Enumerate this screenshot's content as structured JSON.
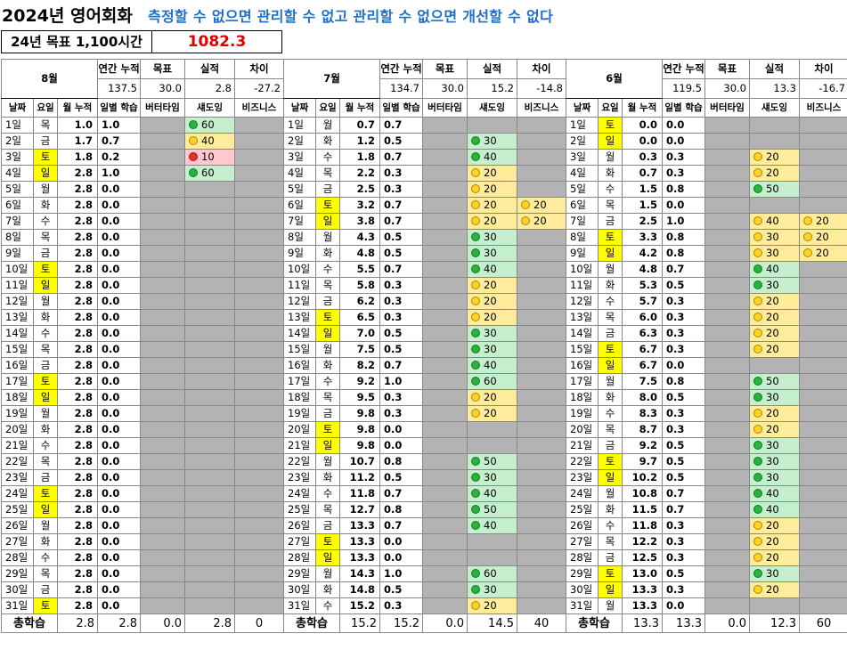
{
  "title": "2024년 영어회화",
  "motto": "측정할 수 없으면  관리할 수 없고 관리할 수 없으면 개선할 수 없다",
  "goal": {
    "label": "24년 목표 1,100시간",
    "value": "1082.3"
  },
  "headers": {
    "annual": "연간 누적",
    "target": "목표",
    "actual": "실적",
    "diff": "차이",
    "date": "날짜",
    "weekday": "요일",
    "monthCum": "월 누적",
    "daily": "일별 학습",
    "butter": "버터타임",
    "shadow": "섀도잉",
    "business": "비즈니스",
    "total": "총학습"
  },
  "months": [
    {
      "name": "8월",
      "summary": {
        "annual": "137.5",
        "target": "30.0",
        "actual": "2.8",
        "diff": "-27.2"
      },
      "rows": [
        [
          "1일",
          "목",
          "1.0",
          "1.0",
          null,
          [
            "60",
            "green"
          ],
          null
        ],
        [
          "2일",
          "금",
          "1.7",
          "0.7",
          null,
          [
            "40",
            "yellow"
          ],
          null
        ],
        [
          "3일",
          "토",
          "1.8",
          "0.2",
          null,
          [
            "10",
            "red"
          ],
          null
        ],
        [
          "4일",
          "일",
          "2.8",
          "1.0",
          null,
          [
            "60",
            "green"
          ],
          null
        ],
        [
          "5일",
          "월",
          "2.8",
          "0.0",
          null,
          null,
          null
        ],
        [
          "6일",
          "화",
          "2.8",
          "0.0",
          null,
          null,
          null
        ],
        [
          "7일",
          "수",
          "2.8",
          "0.0",
          null,
          null,
          null
        ],
        [
          "8일",
          "목",
          "2.8",
          "0.0",
          null,
          null,
          null
        ],
        [
          "9일",
          "금",
          "2.8",
          "0.0",
          null,
          null,
          null
        ],
        [
          "10일",
          "토",
          "2.8",
          "0.0",
          null,
          null,
          null
        ],
        [
          "11일",
          "일",
          "2.8",
          "0.0",
          null,
          null,
          null
        ],
        [
          "12일",
          "월",
          "2.8",
          "0.0",
          null,
          null,
          null
        ],
        [
          "13일",
          "화",
          "2.8",
          "0.0",
          null,
          null,
          null
        ],
        [
          "14일",
          "수",
          "2.8",
          "0.0",
          null,
          null,
          null
        ],
        [
          "15일",
          "목",
          "2.8",
          "0.0",
          null,
          null,
          null
        ],
        [
          "16일",
          "금",
          "2.8",
          "0.0",
          null,
          null,
          null
        ],
        [
          "17일",
          "토",
          "2.8",
          "0.0",
          null,
          null,
          null
        ],
        [
          "18일",
          "일",
          "2.8",
          "0.0",
          null,
          null,
          null
        ],
        [
          "19일",
          "월",
          "2.8",
          "0.0",
          null,
          null,
          null
        ],
        [
          "20일",
          "화",
          "2.8",
          "0.0",
          null,
          null,
          null
        ],
        [
          "21일",
          "수",
          "2.8",
          "0.0",
          null,
          null,
          null
        ],
        [
          "22일",
          "목",
          "2.8",
          "0.0",
          null,
          null,
          null
        ],
        [
          "23일",
          "금",
          "2.8",
          "0.0",
          null,
          null,
          null
        ],
        [
          "24일",
          "토",
          "2.8",
          "0.0",
          null,
          null,
          null
        ],
        [
          "25일",
          "일",
          "2.8",
          "0.0",
          null,
          null,
          null
        ],
        [
          "26일",
          "월",
          "2.8",
          "0.0",
          null,
          null,
          null
        ],
        [
          "27일",
          "화",
          "2.8",
          "0.0",
          null,
          null,
          null
        ],
        [
          "28일",
          "수",
          "2.8",
          "0.0",
          null,
          null,
          null
        ],
        [
          "29일",
          "목",
          "2.8",
          "0.0",
          null,
          null,
          null
        ],
        [
          "30일",
          "금",
          "2.8",
          "0.0",
          null,
          null,
          null
        ],
        [
          "31일",
          "토",
          "2.8",
          "0.0",
          null,
          null,
          null
        ]
      ],
      "total": [
        "2.8",
        "2.8",
        "0.0",
        "2.8",
        "0"
      ]
    },
    {
      "name": "7월",
      "summary": {
        "annual": "134.7",
        "target": "30.0",
        "actual": "15.2",
        "diff": "-14.8"
      },
      "rows": [
        [
          "1일",
          "월",
          "0.7",
          "0.7",
          null,
          null,
          null
        ],
        [
          "2일",
          "화",
          "1.2",
          "0.5",
          null,
          [
            "30",
            "green"
          ],
          null
        ],
        [
          "3일",
          "수",
          "1.8",
          "0.7",
          null,
          [
            "40",
            "green"
          ],
          null
        ],
        [
          "4일",
          "목",
          "2.2",
          "0.3",
          null,
          [
            "20",
            "yellow"
          ],
          null
        ],
        [
          "5일",
          "금",
          "2.5",
          "0.3",
          null,
          [
            "20",
            "yellow"
          ],
          null
        ],
        [
          "6일",
          "토",
          "3.2",
          "0.7",
          null,
          [
            "20",
            "yellow"
          ],
          [
            "20",
            "yellow"
          ]
        ],
        [
          "7일",
          "일",
          "3.8",
          "0.7",
          null,
          [
            "20",
            "yellow"
          ],
          [
            "20",
            "yellow"
          ]
        ],
        [
          "8일",
          "월",
          "4.3",
          "0.5",
          null,
          [
            "30",
            "green"
          ],
          null
        ],
        [
          "9일",
          "화",
          "4.8",
          "0.5",
          null,
          [
            "30",
            "green"
          ],
          null
        ],
        [
          "10일",
          "수",
          "5.5",
          "0.7",
          null,
          [
            "40",
            "green"
          ],
          null
        ],
        [
          "11일",
          "목",
          "5.8",
          "0.3",
          null,
          [
            "20",
            "yellow"
          ],
          null
        ],
        [
          "12일",
          "금",
          "6.2",
          "0.3",
          null,
          [
            "20",
            "yellow"
          ],
          null
        ],
        [
          "13일",
          "토",
          "6.5",
          "0.3",
          null,
          [
            "20",
            "yellow"
          ],
          null
        ],
        [
          "14일",
          "일",
          "7.0",
          "0.5",
          null,
          [
            "30",
            "green"
          ],
          null
        ],
        [
          "15일",
          "월",
          "7.5",
          "0.5",
          null,
          [
            "30",
            "green"
          ],
          null
        ],
        [
          "16일",
          "화",
          "8.2",
          "0.7",
          null,
          [
            "40",
            "green"
          ],
          null
        ],
        [
          "17일",
          "수",
          "9.2",
          "1.0",
          null,
          [
            "60",
            "green"
          ],
          null
        ],
        [
          "18일",
          "목",
          "9.5",
          "0.3",
          null,
          [
            "20",
            "yellow"
          ],
          null
        ],
        [
          "19일",
          "금",
          "9.8",
          "0.3",
          null,
          [
            "20",
            "yellow"
          ],
          null
        ],
        [
          "20일",
          "토",
          "9.8",
          "0.0",
          null,
          null,
          null
        ],
        [
          "21일",
          "일",
          "9.8",
          "0.0",
          null,
          null,
          null
        ],
        [
          "22일",
          "월",
          "10.7",
          "0.8",
          null,
          [
            "50",
            "green"
          ],
          null
        ],
        [
          "23일",
          "화",
          "11.2",
          "0.5",
          null,
          [
            "30",
            "green"
          ],
          null
        ],
        [
          "24일",
          "수",
          "11.8",
          "0.7",
          null,
          [
            "40",
            "green"
          ],
          null
        ],
        [
          "25일",
          "목",
          "12.7",
          "0.8",
          null,
          [
            "50",
            "green"
          ],
          null
        ],
        [
          "26일",
          "금",
          "13.3",
          "0.7",
          null,
          [
            "40",
            "green"
          ],
          null
        ],
        [
          "27일",
          "토",
          "13.3",
          "0.0",
          null,
          null,
          null
        ],
        [
          "28일",
          "일",
          "13.3",
          "0.0",
          null,
          null,
          null
        ],
        [
          "29일",
          "월",
          "14.3",
          "1.0",
          null,
          [
            "60",
            "green"
          ],
          null
        ],
        [
          "30일",
          "화",
          "14.8",
          "0.5",
          null,
          [
            "30",
            "green"
          ],
          null
        ],
        [
          "31일",
          "수",
          "15.2",
          "0.3",
          null,
          [
            "20",
            "yellow"
          ],
          null
        ]
      ],
      "total": [
        "15.2",
        "15.2",
        "0.0",
        "14.5",
        "40"
      ]
    },
    {
      "name": "6월",
      "summary": {
        "annual": "119.5",
        "target": "30.0",
        "actual": "13.3",
        "diff": "-16.7"
      },
      "rows": [
        [
          "1일",
          "토",
          "0.0",
          "0.0",
          null,
          null,
          null
        ],
        [
          "2일",
          "일",
          "0.0",
          "0.0",
          null,
          null,
          null
        ],
        [
          "3일",
          "월",
          "0.3",
          "0.3",
          null,
          [
            "20",
            "yellow"
          ],
          null
        ],
        [
          "4일",
          "화",
          "0.7",
          "0.3",
          null,
          [
            "20",
            "yellow"
          ],
          null
        ],
        [
          "5일",
          "수",
          "1.5",
          "0.8",
          null,
          [
            "50",
            "green"
          ],
          null
        ],
        [
          "6일",
          "목",
          "1.5",
          "0.0",
          null,
          null,
          null
        ],
        [
          "7일",
          "금",
          "2.5",
          "1.0",
          null,
          [
            "40",
            "yellow"
          ],
          [
            "20",
            "yellow"
          ]
        ],
        [
          "8일",
          "토",
          "3.3",
          "0.8",
          null,
          [
            "30",
            "yellow"
          ],
          [
            "20",
            "yellow"
          ]
        ],
        [
          "9일",
          "일",
          "4.2",
          "0.8",
          null,
          [
            "30",
            "yellow"
          ],
          [
            "20",
            "yellow"
          ]
        ],
        [
          "10일",
          "월",
          "4.8",
          "0.7",
          null,
          [
            "40",
            "green"
          ],
          null
        ],
        [
          "11일",
          "화",
          "5.3",
          "0.5",
          null,
          [
            "30",
            "green"
          ],
          null
        ],
        [
          "12일",
          "수",
          "5.7",
          "0.3",
          null,
          [
            "20",
            "yellow"
          ],
          null
        ],
        [
          "13일",
          "목",
          "6.0",
          "0.3",
          null,
          [
            "20",
            "yellow"
          ],
          null
        ],
        [
          "14일",
          "금",
          "6.3",
          "0.3",
          null,
          [
            "20",
            "yellow"
          ],
          null
        ],
        [
          "15일",
          "토",
          "6.7",
          "0.3",
          null,
          [
            "20",
            "yellow"
          ],
          null
        ],
        [
          "16일",
          "일",
          "6.7",
          "0.0",
          null,
          null,
          null
        ],
        [
          "17일",
          "월",
          "7.5",
          "0.8",
          null,
          [
            "50",
            "green"
          ],
          null
        ],
        [
          "18일",
          "화",
          "8.0",
          "0.5",
          null,
          [
            "30",
            "green"
          ],
          null
        ],
        [
          "19일",
          "수",
          "8.3",
          "0.3",
          null,
          [
            "20",
            "yellow"
          ],
          null
        ],
        [
          "20일",
          "목",
          "8.7",
          "0.3",
          null,
          [
            "20",
            "yellow"
          ],
          null
        ],
        [
          "21일",
          "금",
          "9.2",
          "0.5",
          null,
          [
            "30",
            "green"
          ],
          null
        ],
        [
          "22일",
          "토",
          "9.7",
          "0.5",
          null,
          [
            "30",
            "green"
          ],
          null
        ],
        [
          "23일",
          "일",
          "10.2",
          "0.5",
          null,
          [
            "30",
            "green"
          ],
          null
        ],
        [
          "24일",
          "월",
          "10.8",
          "0.7",
          null,
          [
            "40",
            "green"
          ],
          null
        ],
        [
          "25일",
          "화",
          "11.5",
          "0.7",
          null,
          [
            "40",
            "green"
          ],
          null
        ],
        [
          "26일",
          "수",
          "11.8",
          "0.3",
          null,
          [
            "20",
            "yellow"
          ],
          null
        ],
        [
          "27일",
          "목",
          "12.2",
          "0.3",
          null,
          [
            "20",
            "yellow"
          ],
          null
        ],
        [
          "28일",
          "금",
          "12.5",
          "0.3",
          null,
          [
            "20",
            "yellow"
          ],
          null
        ],
        [
          "29일",
          "토",
          "13.0",
          "0.5",
          null,
          [
            "30",
            "green"
          ],
          null
        ],
        [
          "30일",
          "일",
          "13.3",
          "0.3",
          null,
          [
            "20",
            "yellow"
          ],
          null
        ],
        [
          "31일",
          "월",
          "13.3",
          "0.0",
          null,
          null,
          null
        ]
      ],
      "total": [
        "13.3",
        "13.3",
        "0.0",
        "12.3",
        "60"
      ]
    }
  ],
  "colors": {
    "weekend": "#ffff00",
    "empty": "#b3b3b3",
    "title_accent": "#1f6fc4",
    "goal_value": "#e00000"
  }
}
